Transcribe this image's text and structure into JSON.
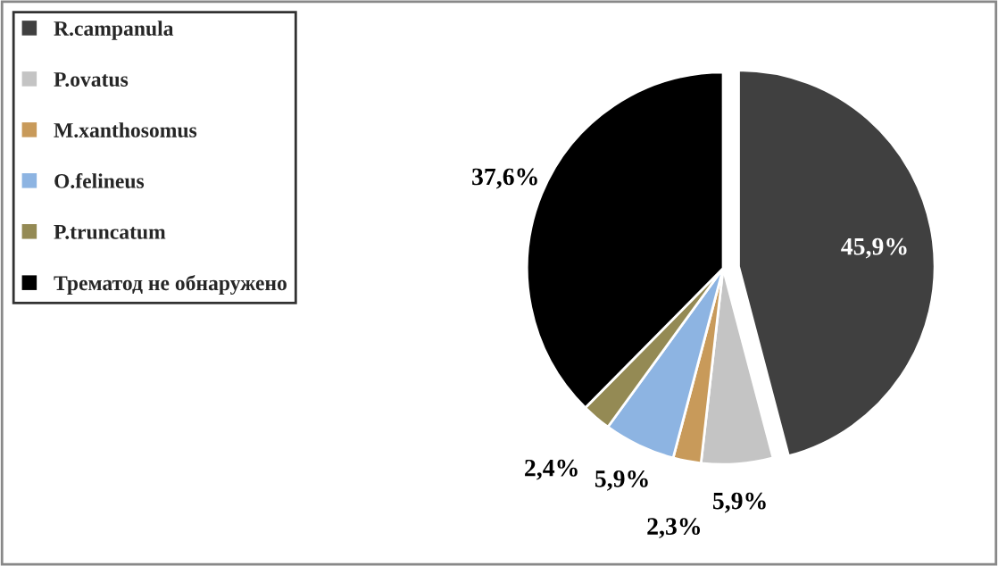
{
  "chart_data": {
    "type": "pie",
    "categories": [
      "R.campanula",
      "P.ovatus",
      "M.xanthosomus",
      "O.felineus",
      "P.truncatum",
      "Трематод не обнаружено"
    ],
    "values": [
      45.9,
      5.9,
      2.3,
      5.9,
      2.4,
      37.6
    ],
    "value_labels": [
      "45,9%",
      "5,9%",
      "2,3%",
      "5,9%",
      "2,4%",
      "37,6%"
    ],
    "colors": [
      "#404040",
      "#c4c4c4",
      "#c89a5a",
      "#8db4e2",
      "#948a54",
      "#000000"
    ],
    "legend": "left"
  }
}
